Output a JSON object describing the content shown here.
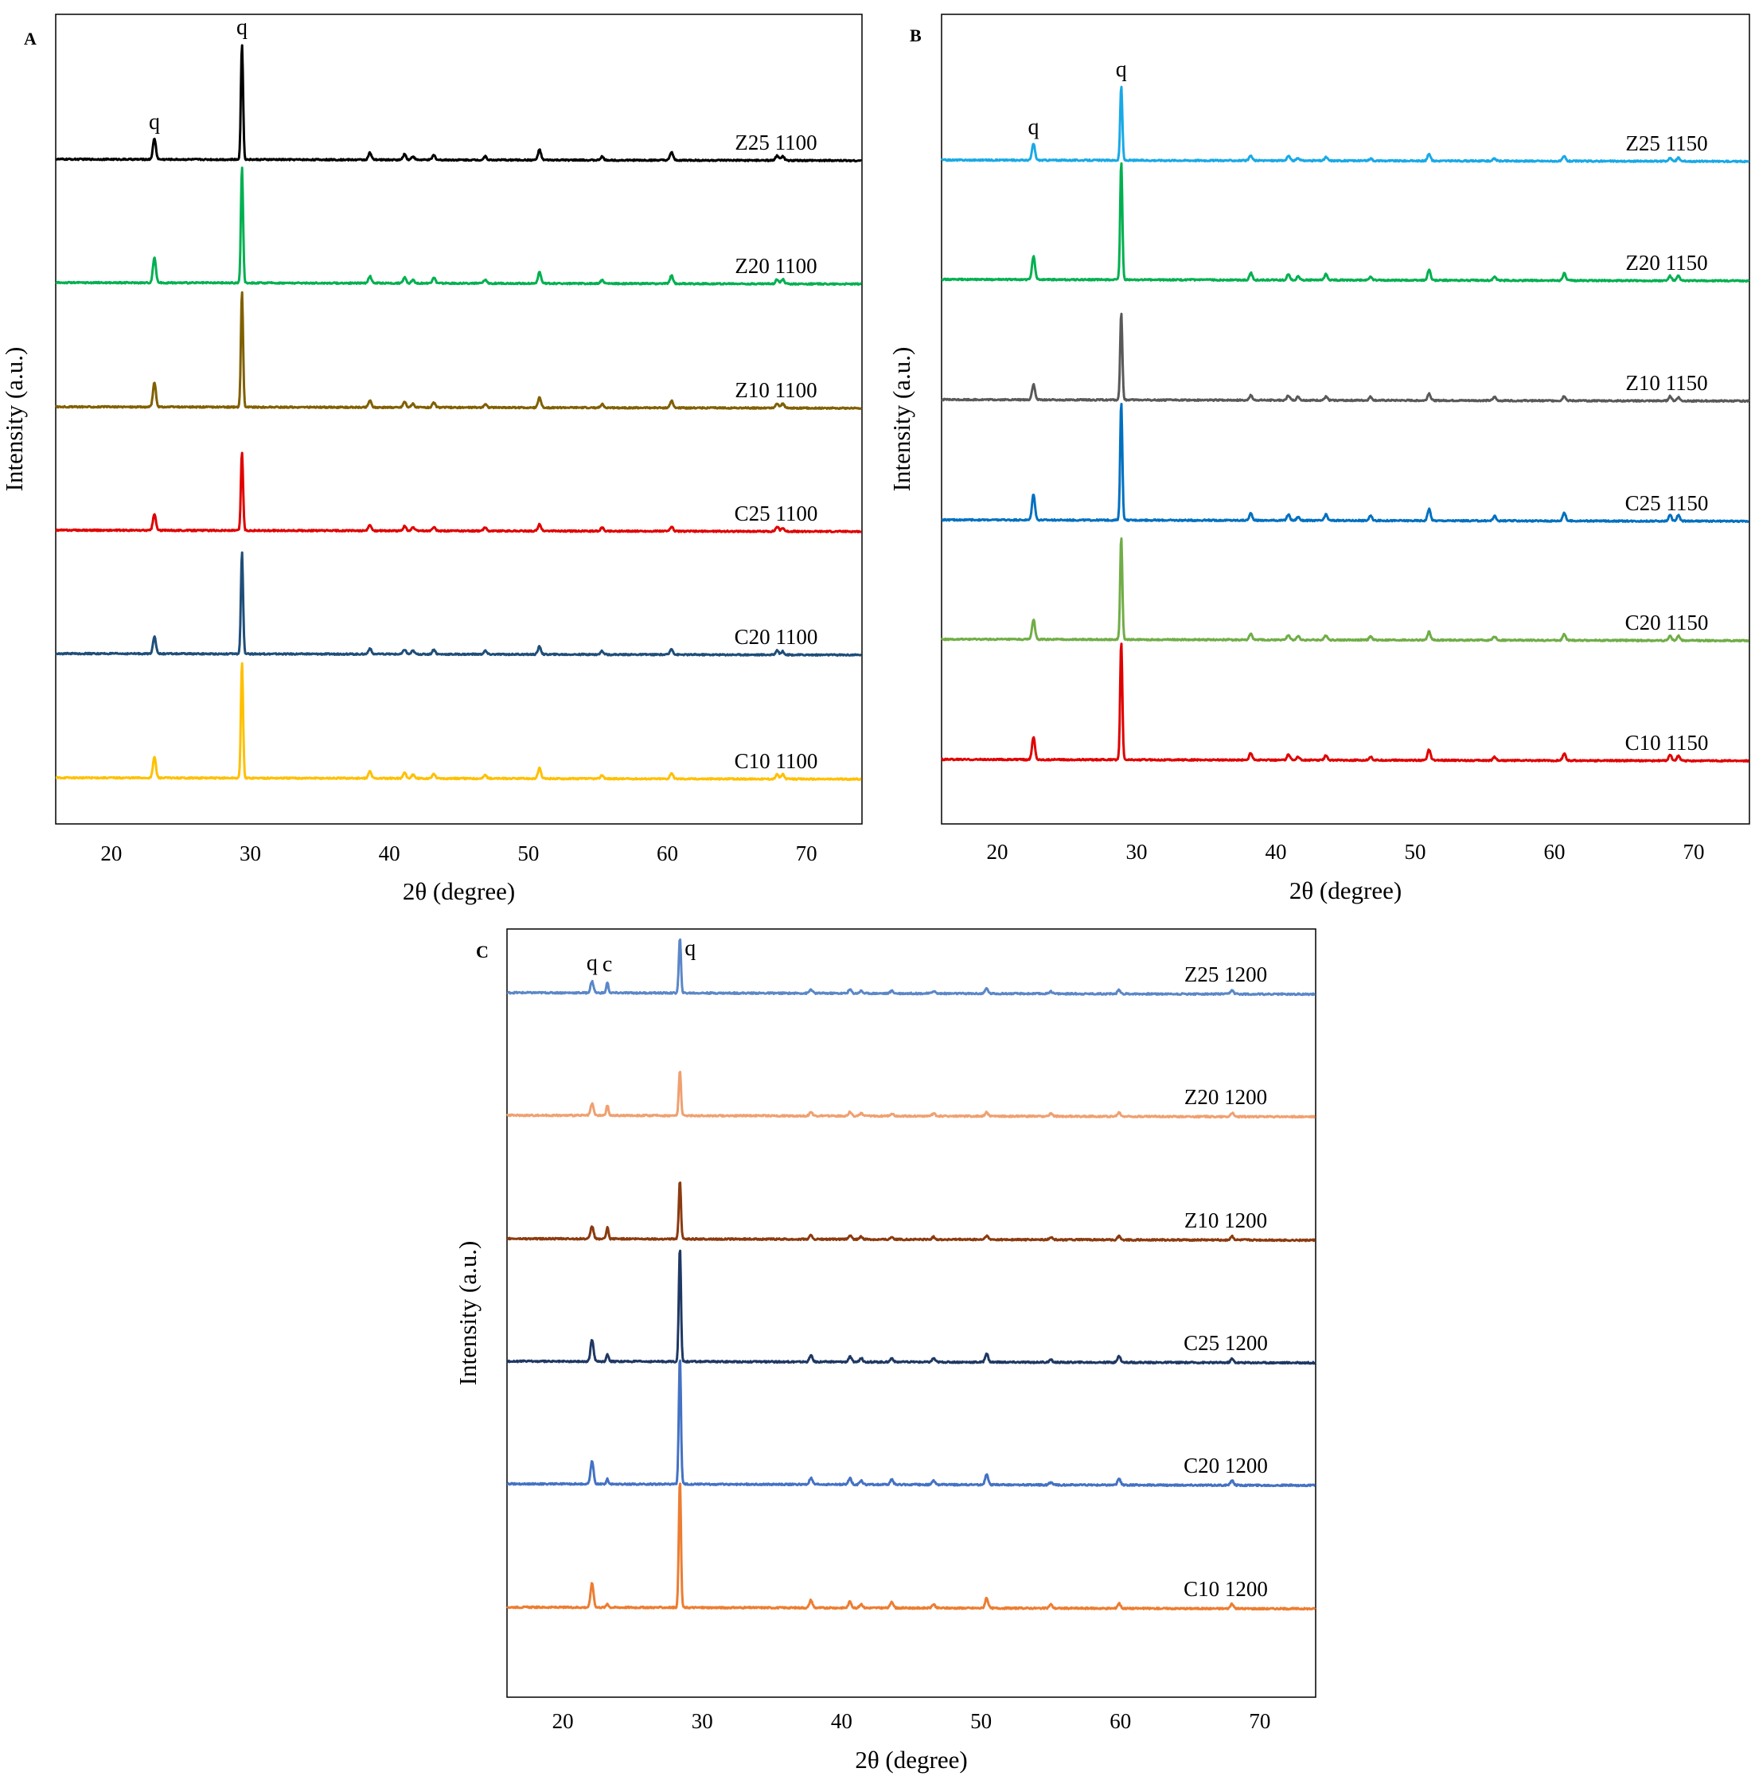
{
  "figure": {
    "panels": [
      {
        "letter": "A",
        "xlabel": "2θ (degree)",
        "ylabel": "Intensity (a.u.)",
        "xticks": [
          "20",
          "30",
          "40",
          "50",
          "60",
          "70"
        ]
      },
      {
        "letter": "B",
        "xlabel": "2θ (degree)",
        "ylabel": "Intensity (a.u.)",
        "xticks": [
          "20",
          "30",
          "40",
          "50",
          "60",
          "70"
        ]
      },
      {
        "letter": "C",
        "xlabel": "2θ (degree)",
        "ylabel": "Intensity (a.u.)",
        "xticks": [
          "20",
          "30",
          "40",
          "50",
          "60",
          "70"
        ]
      }
    ]
  },
  "chart_data": [
    {
      "type": "line",
      "panel": "A",
      "xlabel": "2θ (degree)",
      "ylabel": "Intensity (a.u.)",
      "xlim": [
        16,
        74
      ],
      "xticks": [
        20,
        30,
        40,
        50,
        60,
        70
      ],
      "y_ticks_shown": false,
      "layout": "stacked offset patterns",
      "peak_positions_2theta": [
        23.1,
        29.4,
        38.6,
        41.1,
        41.7,
        43.2,
        46.9,
        50.8,
        55.3,
        60.3,
        67.9,
        68.3
      ],
      "annotations": [
        {
          "text": "q",
          "x": 23.1,
          "series": "Z25 1100"
        },
        {
          "text": "q",
          "x": 29.4,
          "series": "Z25 1100"
        }
      ],
      "series": [
        {
          "name": "Z25 1100",
          "color": "#000000",
          "relative_intensities": [
            0.18,
            1.0,
            0.06,
            0.05,
            0.03,
            0.04,
            0.03,
            0.09,
            0.03,
            0.07,
            0.04,
            0.04
          ]
        },
        {
          "name": "Z20 1100",
          "color": "#00B050",
          "relative_intensities": [
            0.22,
            1.0,
            0.06,
            0.05,
            0.03,
            0.05,
            0.03,
            0.1,
            0.03,
            0.07,
            0.04,
            0.04
          ]
        },
        {
          "name": "Z10 1100",
          "color": "#806000",
          "relative_intensities": [
            0.21,
            1.0,
            0.06,
            0.05,
            0.03,
            0.04,
            0.03,
            0.09,
            0.03,
            0.06,
            0.04,
            0.04
          ]
        },
        {
          "name": "C25 1100",
          "color": "#E00000",
          "relative_intensities": [
            0.14,
            0.68,
            0.05,
            0.04,
            0.03,
            0.03,
            0.03,
            0.06,
            0.03,
            0.04,
            0.04,
            0.03
          ]
        },
        {
          "name": "C20 1100",
          "color": "#1F4E79",
          "relative_intensities": [
            0.15,
            0.88,
            0.05,
            0.04,
            0.03,
            0.04,
            0.03,
            0.07,
            0.03,
            0.05,
            0.04,
            0.03
          ]
        },
        {
          "name": "C10 1100",
          "color": "#FFC000",
          "relative_intensities": [
            0.18,
            1.0,
            0.06,
            0.05,
            0.03,
            0.04,
            0.03,
            0.09,
            0.03,
            0.05,
            0.04,
            0.04
          ]
        }
      ]
    },
    {
      "type": "line",
      "panel": "B",
      "xlabel": "2θ (degree)",
      "ylabel": "Intensity (a.u.)",
      "xlim": [
        16,
        74
      ],
      "xticks": [
        20,
        30,
        40,
        50,
        60,
        70
      ],
      "y_ticks_shown": false,
      "layout": "stacked offset patterns",
      "peak_positions_2theta": [
        22.6,
        28.9,
        38.2,
        40.9,
        41.6,
        43.6,
        46.8,
        51.0,
        55.7,
        60.7,
        68.3,
        68.9
      ],
      "annotations": [
        {
          "text": "q",
          "x": 22.6,
          "series": "Z25 1150"
        },
        {
          "text": "q",
          "x": 28.9,
          "series": "Z25 1150"
        }
      ],
      "series": [
        {
          "name": "Z25 1150",
          "color": "#19A9E6",
          "relative_intensities": [
            0.14,
            0.63,
            0.04,
            0.04,
            0.02,
            0.03,
            0.02,
            0.06,
            0.02,
            0.04,
            0.03,
            0.03
          ]
        },
        {
          "name": "Z20 1150",
          "color": "#00B050",
          "relative_intensities": [
            0.2,
            1.0,
            0.06,
            0.05,
            0.03,
            0.05,
            0.03,
            0.09,
            0.03,
            0.06,
            0.04,
            0.04
          ]
        },
        {
          "name": "Z10 1150",
          "color": "#595959",
          "relative_intensities": [
            0.13,
            0.74,
            0.04,
            0.04,
            0.03,
            0.03,
            0.03,
            0.06,
            0.03,
            0.04,
            0.04,
            0.03
          ]
        },
        {
          "name": "C25 1150",
          "color": "#0070C0",
          "relative_intensities": [
            0.22,
            1.0,
            0.06,
            0.05,
            0.03,
            0.05,
            0.04,
            0.1,
            0.04,
            0.07,
            0.05,
            0.05
          ]
        },
        {
          "name": "C20 1150",
          "color": "#70AD47",
          "relative_intensities": [
            0.17,
            0.87,
            0.05,
            0.04,
            0.03,
            0.04,
            0.03,
            0.07,
            0.03,
            0.05,
            0.04,
            0.04
          ]
        },
        {
          "name": "C10 1150",
          "color": "#E00000",
          "relative_intensities": [
            0.19,
            1.0,
            0.06,
            0.05,
            0.03,
            0.04,
            0.03,
            0.09,
            0.03,
            0.06,
            0.05,
            0.04
          ]
        }
      ]
    },
    {
      "type": "line",
      "panel": "C",
      "xlabel": "2θ (degree)",
      "ylabel": "Intensity (a.u.)",
      "xlim": [
        16,
        74
      ],
      "xticks": [
        20,
        30,
        40,
        50,
        60,
        70
      ],
      "y_ticks_shown": false,
      "layout": "stacked offset patterns",
      "peak_positions_2theta": [
        22.1,
        23.2,
        28.4,
        37.8,
        40.6,
        41.4,
        43.6,
        46.6,
        50.4,
        55.0,
        59.9,
        68.0
      ],
      "annotations": [
        {
          "text": "q",
          "x": 22.1,
          "series": "Z25 1200"
        },
        {
          "text": "c",
          "x": 23.2,
          "series": "Z25 1200"
        },
        {
          "text": "q",
          "x": 28.4,
          "series": "Z25 1200"
        }
      ],
      "series": [
        {
          "name": "Z25 1200",
          "color": "#5B87C8",
          "relative_intensities": [
            0.09,
            0.08,
            0.43,
            0.03,
            0.03,
            0.02,
            0.02,
            0.02,
            0.04,
            0.02,
            0.03,
            0.03
          ]
        },
        {
          "name": "Z20 1200",
          "color": "#F0A070",
          "relative_intensities": [
            0.09,
            0.08,
            0.36,
            0.03,
            0.03,
            0.02,
            0.02,
            0.02,
            0.03,
            0.02,
            0.03,
            0.03
          ]
        },
        {
          "name": "Z10 1200",
          "color": "#8B3A0F",
          "relative_intensities": [
            0.1,
            0.09,
            0.46,
            0.03,
            0.03,
            0.02,
            0.02,
            0.02,
            0.03,
            0.02,
            0.03,
            0.03
          ]
        },
        {
          "name": "C25 1200",
          "color": "#1F3864",
          "relative_intensities": [
            0.17,
            0.06,
            0.9,
            0.05,
            0.04,
            0.03,
            0.03,
            0.03,
            0.07,
            0.02,
            0.05,
            0.03
          ]
        },
        {
          "name": "C20 1200",
          "color": "#4472C4",
          "relative_intensities": [
            0.18,
            0.04,
            1.0,
            0.05,
            0.05,
            0.03,
            0.04,
            0.03,
            0.08,
            0.02,
            0.05,
            0.04
          ]
        },
        {
          "name": "C10 1200",
          "color": "#ED7D31",
          "relative_intensities": [
            0.19,
            0.03,
            1.0,
            0.06,
            0.05,
            0.03,
            0.05,
            0.03,
            0.08,
            0.03,
            0.04,
            0.04
          ]
        }
      ]
    }
  ]
}
